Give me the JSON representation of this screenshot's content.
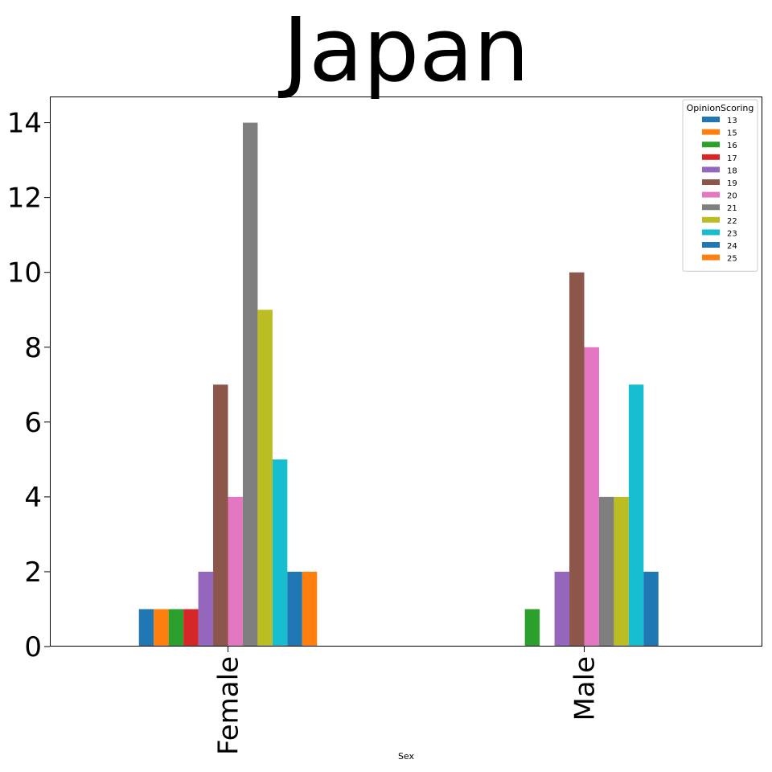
{
  "chart_data": {
    "type": "bar",
    "title": "Japan",
    "xlabel": "Sex",
    "ylabel": "",
    "categories": [
      "Female",
      "Male"
    ],
    "ylim": [
      0,
      14.7
    ],
    "yticks": [
      0,
      2,
      4,
      6,
      8,
      10,
      12,
      14
    ],
    "grid": false,
    "legend": {
      "title": "OpinionScoring",
      "placement": "top-right"
    },
    "series": [
      {
        "name": "13",
        "color": "#1f77b4",
        "values": [
          1,
          0
        ]
      },
      {
        "name": "15",
        "color": "#ff7f0e",
        "values": [
          1,
          0
        ]
      },
      {
        "name": "16",
        "color": "#2ca02c",
        "values": [
          1,
          1
        ]
      },
      {
        "name": "17",
        "color": "#d62728",
        "values": [
          1,
          0
        ]
      },
      {
        "name": "18",
        "color": "#9467bd",
        "values": [
          2,
          2
        ]
      },
      {
        "name": "19",
        "color": "#8c564b",
        "values": [
          7,
          10
        ]
      },
      {
        "name": "20",
        "color": "#e377c2",
        "values": [
          4,
          8
        ]
      },
      {
        "name": "21",
        "color": "#7f7f7f",
        "values": [
          14,
          4
        ]
      },
      {
        "name": "22",
        "color": "#bcbd22",
        "values": [
          9,
          4
        ]
      },
      {
        "name": "23",
        "color": "#17becf",
        "values": [
          5,
          7
        ]
      },
      {
        "name": "24",
        "color": "#1f77b4",
        "values": [
          2,
          2
        ]
      },
      {
        "name": "25",
        "color": "#ff7f0e",
        "values": [
          2,
          0
        ]
      }
    ]
  }
}
